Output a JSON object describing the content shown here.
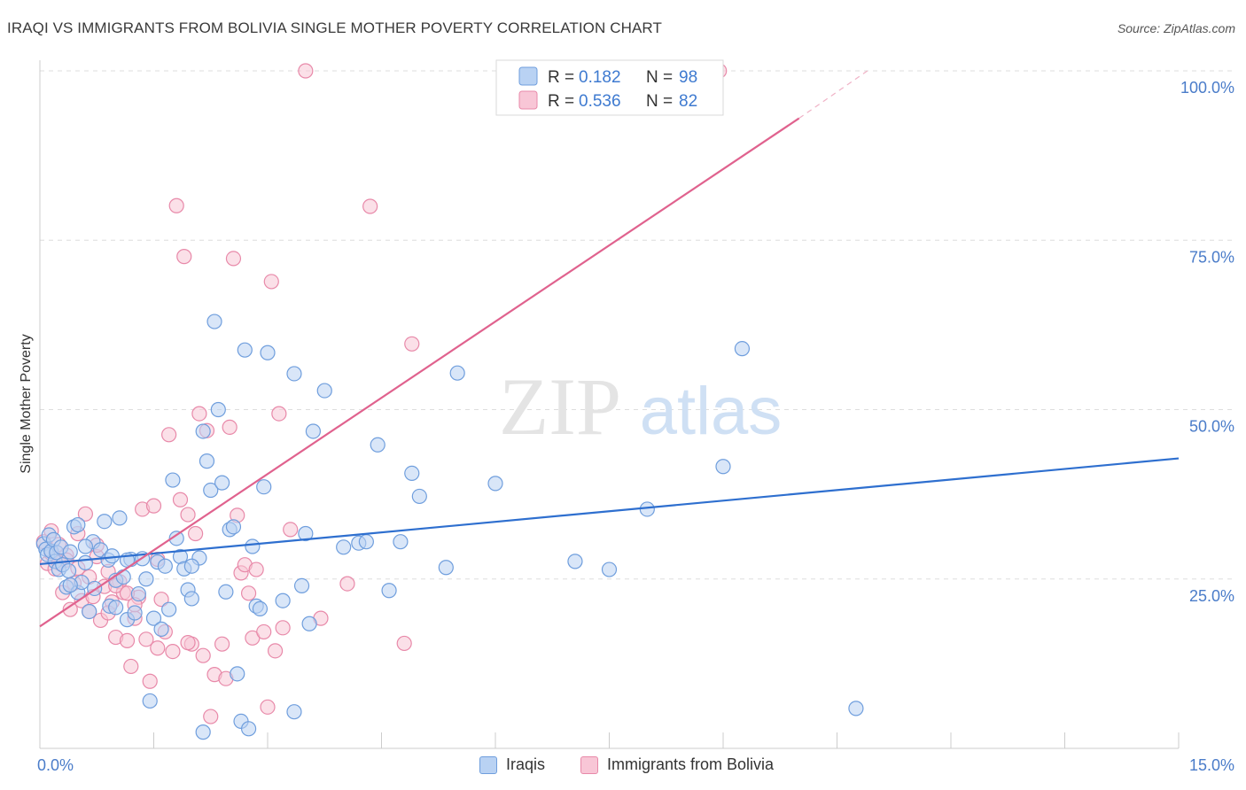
{
  "header": {
    "title": "IRAQI VS IMMIGRANTS FROM BOLIVIA SINGLE MOTHER POVERTY CORRELATION CHART",
    "source": "Source: ZipAtlas.com"
  },
  "watermark": {
    "zip": "ZIP",
    "atlas": "atlas"
  },
  "colors": {
    "blue_fill": "#b9d2f3",
    "blue_stroke": "#6f9edd",
    "blue_line": "#2e6fcf",
    "pink_fill": "#f8c6d6",
    "pink_stroke": "#e889a9",
    "pink_line": "#e0628e",
    "tick": "#4a7cc9",
    "grid": "#dddddd"
  },
  "legend_top": {
    "r_label": "R =",
    "n_label": "N =",
    "rows": [
      {
        "series": "Iraqis",
        "r": "0.182",
        "n": "98"
      },
      {
        "series": "Immigrants from Bolivia",
        "r": "0.536",
        "n": "82"
      }
    ]
  },
  "legend_bottom": [
    "Iraqis",
    "Immigrants from Bolivia"
  ],
  "chart_data": {
    "type": "scatter",
    "title": "IRAQI VS IMMIGRANTS FROM BOLIVIA SINGLE MOTHER POVERTY CORRELATION CHART",
    "xlabel": "",
    "ylabel": "Single Mother Poverty",
    "xlim": [
      0,
      15
    ],
    "ylim": [
      0,
      100
    ],
    "x_tick_labels": [
      "0.0%",
      "15.0%"
    ],
    "y_ticks": [
      25,
      50,
      75,
      100
    ],
    "y_tick_labels": [
      "25.0%",
      "50.0%",
      "75.0%",
      "100.0%"
    ],
    "grid": true,
    "series": [
      {
        "name": "Iraqis",
        "R": 0.182,
        "N": 98,
        "trend": {
          "x": [
            0,
            15
          ],
          "y": [
            27.2,
            42.8
          ]
        },
        "points": [
          [
            0.05,
            30.2
          ],
          [
            0.08,
            29.4
          ],
          [
            0.1,
            28.6
          ],
          [
            0.12,
            31.5
          ],
          [
            0.15,
            29.1
          ],
          [
            0.18,
            30.8
          ],
          [
            0.2,
            27.6
          ],
          [
            0.22,
            28.9
          ],
          [
            0.25,
            26.4
          ],
          [
            0.28,
            29.7
          ],
          [
            0.3,
            27.1
          ],
          [
            0.35,
            23.8
          ],
          [
            0.38,
            26.2
          ],
          [
            0.4,
            29.0
          ],
          [
            0.45,
            32.7
          ],
          [
            0.5,
            33.0
          ],
          [
            0.5,
            23.0
          ],
          [
            0.55,
            24.5
          ],
          [
            0.6,
            27.4
          ],
          [
            0.65,
            20.2
          ],
          [
            0.7,
            30.5
          ],
          [
            0.72,
            23.6
          ],
          [
            0.8,
            29.3
          ],
          [
            0.85,
            33.5
          ],
          [
            0.9,
            27.8
          ],
          [
            0.92,
            21.0
          ],
          [
            0.95,
            28.4
          ],
          [
            1.0,
            24.8
          ],
          [
            1.05,
            34.0
          ],
          [
            1.1,
            25.3
          ],
          [
            1.15,
            19.0
          ],
          [
            1.2,
            27.9
          ],
          [
            1.25,
            20.0
          ],
          [
            1.3,
            22.8
          ],
          [
            1.35,
            28.0
          ],
          [
            1.4,
            25.0
          ],
          [
            1.45,
            7.0
          ],
          [
            1.5,
            19.2
          ],
          [
            1.55,
            27.5
          ],
          [
            1.6,
            17.6
          ],
          [
            1.65,
            26.9
          ],
          [
            1.7,
            20.5
          ],
          [
            1.75,
            39.6
          ],
          [
            1.8,
            31.0
          ],
          [
            1.85,
            28.3
          ],
          [
            1.9,
            26.5
          ],
          [
            1.95,
            23.4
          ],
          [
            2.0,
            22.1
          ],
          [
            2.1,
            28.1
          ],
          [
            2.15,
            46.8
          ],
          [
            2.2,
            42.4
          ],
          [
            2.25,
            38.1
          ],
          [
            2.3,
            63.0
          ],
          [
            2.35,
            50.0
          ],
          [
            2.4,
            39.2
          ],
          [
            2.45,
            23.1
          ],
          [
            2.5,
            32.3
          ],
          [
            2.55,
            32.7
          ],
          [
            2.6,
            11.0
          ],
          [
            2.65,
            4.0
          ],
          [
            2.7,
            58.8
          ],
          [
            2.75,
            2.9
          ],
          [
            2.8,
            29.8
          ],
          [
            2.85,
            21.0
          ],
          [
            2.9,
            20.6
          ],
          [
            2.95,
            38.6
          ],
          [
            3.0,
            58.4
          ],
          [
            3.2,
            21.8
          ],
          [
            3.35,
            55.3
          ],
          [
            3.45,
            24.0
          ],
          [
            3.5,
            31.7
          ],
          [
            3.55,
            18.4
          ],
          [
            3.6,
            46.8
          ],
          [
            3.75,
            52.8
          ],
          [
            4.0,
            29.7
          ],
          [
            4.2,
            30.3
          ],
          [
            4.3,
            30.5
          ],
          [
            4.45,
            44.8
          ],
          [
            4.6,
            23.3
          ],
          [
            4.75,
            30.5
          ],
          [
            4.9,
            40.6
          ],
          [
            5.0,
            37.2
          ],
          [
            5.35,
            26.7
          ],
          [
            5.5,
            55.4
          ],
          [
            6.0,
            39.1
          ],
          [
            7.05,
            27.6
          ],
          [
            7.5,
            26.4
          ],
          [
            8.0,
            35.3
          ],
          [
            9.0,
            41.6
          ],
          [
            9.25,
            59.0
          ],
          [
            10.75,
            5.9
          ],
          [
            2.15,
            2.4
          ],
          [
            1.0,
            20.8
          ],
          [
            0.6,
            29.8
          ],
          [
            0.4,
            24.1
          ],
          [
            3.35,
            5.4
          ],
          [
            1.15,
            27.8
          ],
          [
            2.0,
            26.9
          ]
        ]
      },
      {
        "name": "Immigrants from Bolivia",
        "R": 0.536,
        "N": 82,
        "trend": {
          "x": [
            0,
            10
          ],
          "y": [
            18.0,
            93.0
          ]
        },
        "trend_extension": {
          "x": [
            10,
            10.9
          ],
          "y": [
            93.0,
            100.0
          ]
        },
        "points": [
          [
            0.05,
            30.5
          ],
          [
            0.1,
            27.3
          ],
          [
            0.15,
            28.8
          ],
          [
            0.2,
            26.5
          ],
          [
            0.25,
            30.1
          ],
          [
            0.3,
            23.0
          ],
          [
            0.35,
            28.5
          ],
          [
            0.4,
            20.5
          ],
          [
            0.45,
            24.4
          ],
          [
            0.5,
            26.6
          ],
          [
            0.55,
            21.8
          ],
          [
            0.6,
            34.6
          ],
          [
            0.65,
            20.2
          ],
          [
            0.7,
            22.4
          ],
          [
            0.75,
            28.3
          ],
          [
            0.8,
            18.9
          ],
          [
            0.85,
            23.9
          ],
          [
            0.9,
            26.1
          ],
          [
            0.95,
            21.6
          ],
          [
            1.0,
            16.4
          ],
          [
            1.05,
            24.6
          ],
          [
            1.1,
            23.0
          ],
          [
            1.15,
            15.9
          ],
          [
            1.2,
            12.1
          ],
          [
            1.25,
            19.2
          ],
          [
            1.3,
            22.3
          ],
          [
            1.35,
            35.3
          ],
          [
            1.4,
            16.1
          ],
          [
            1.45,
            9.9
          ],
          [
            1.5,
            35.8
          ],
          [
            1.55,
            27.9
          ],
          [
            1.6,
            22.0
          ],
          [
            1.65,
            17.2
          ],
          [
            1.7,
            46.3
          ],
          [
            1.75,
            14.3
          ],
          [
            1.8,
            80.1
          ],
          [
            1.85,
            36.7
          ],
          [
            1.9,
            72.6
          ],
          [
            1.95,
            34.5
          ],
          [
            2.0,
            15.4
          ],
          [
            2.05,
            31.7
          ],
          [
            2.1,
            49.4
          ],
          [
            2.15,
            13.7
          ],
          [
            2.2,
            46.9
          ],
          [
            2.25,
            4.7
          ],
          [
            2.3,
            10.9
          ],
          [
            2.4,
            15.4
          ],
          [
            2.45,
            10.3
          ],
          [
            2.5,
            47.4
          ],
          [
            2.55,
            72.3
          ],
          [
            2.6,
            34.4
          ],
          [
            2.65,
            25.9
          ],
          [
            2.7,
            27.1
          ],
          [
            2.75,
            22.9
          ],
          [
            2.8,
            16.3
          ],
          [
            2.85,
            26.4
          ],
          [
            2.95,
            17.2
          ],
          [
            3.0,
            6.1
          ],
          [
            3.05,
            68.9
          ],
          [
            3.1,
            14.4
          ],
          [
            3.15,
            49.4
          ],
          [
            3.2,
            17.8
          ],
          [
            3.3,
            32.3
          ],
          [
            3.5,
            100.0
          ],
          [
            3.7,
            19.2
          ],
          [
            4.05,
            24.3
          ],
          [
            4.35,
            80.0
          ],
          [
            4.8,
            15.5
          ],
          [
            4.9,
            59.7
          ],
          [
            8.95,
            100.0
          ],
          [
            0.25,
            27.4
          ],
          [
            0.5,
            31.7
          ],
          [
            0.75,
            30.0
          ],
          [
            1.0,
            24.0
          ],
          [
            1.25,
            21.2
          ],
          [
            1.55,
            14.8
          ],
          [
            1.95,
            15.6
          ],
          [
            0.35,
            27.8
          ],
          [
            0.65,
            25.3
          ],
          [
            1.15,
            22.9
          ],
          [
            0.15,
            32.1
          ],
          [
            0.9,
            20.0
          ]
        ]
      }
    ]
  }
}
